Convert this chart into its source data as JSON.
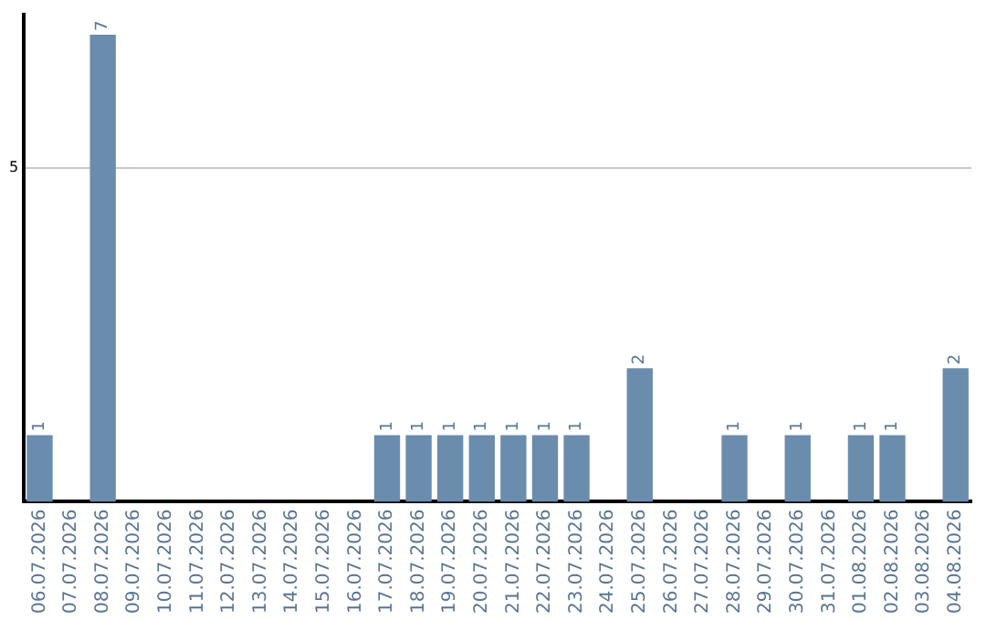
{
  "chart_data": {
    "type": "bar",
    "categories": [
      "06.07.2026",
      "07.07.2026",
      "08.07.2026",
      "09.07.2026",
      "10.07.2026",
      "11.07.2026",
      "12.07.2026",
      "13.07.2026",
      "14.07.2026",
      "15.07.2026",
      "16.07.2026",
      "17.07.2026",
      "18.07.2026",
      "19.07.2026",
      "20.07.2026",
      "21.07.2026",
      "22.07.2026",
      "23.07.2026",
      "24.07.2026",
      "25.07.2026",
      "26.07.2026",
      "27.07.2026",
      "28.07.2026",
      "29.07.2026",
      "30.07.2026",
      "31.07.2026",
      "01.08.2026",
      "02.08.2026",
      "03.08.2026",
      "04.08.2026"
    ],
    "values": [
      1,
      0,
      7,
      0,
      0,
      0,
      0,
      0,
      0,
      0,
      0,
      1,
      1,
      1,
      1,
      1,
      1,
      1,
      0,
      2,
      0,
      0,
      1,
      0,
      1,
      0,
      1,
      1,
      0,
      2
    ],
    "value_labels": [
      "1",
      null,
      "7",
      null,
      null,
      null,
      null,
      null,
      null,
      null,
      null,
      "1",
      "1",
      "1",
      "1",
      "1",
      "1",
      "1",
      null,
      "2",
      null,
      null,
      "1",
      null,
      "1",
      null,
      "1",
      "1",
      null,
      "2"
    ],
    "color": "#6a8cad",
    "ylim": [
      0,
      7.3
    ],
    "yticks": [
      5
    ],
    "grid": "y",
    "legend": false
  }
}
